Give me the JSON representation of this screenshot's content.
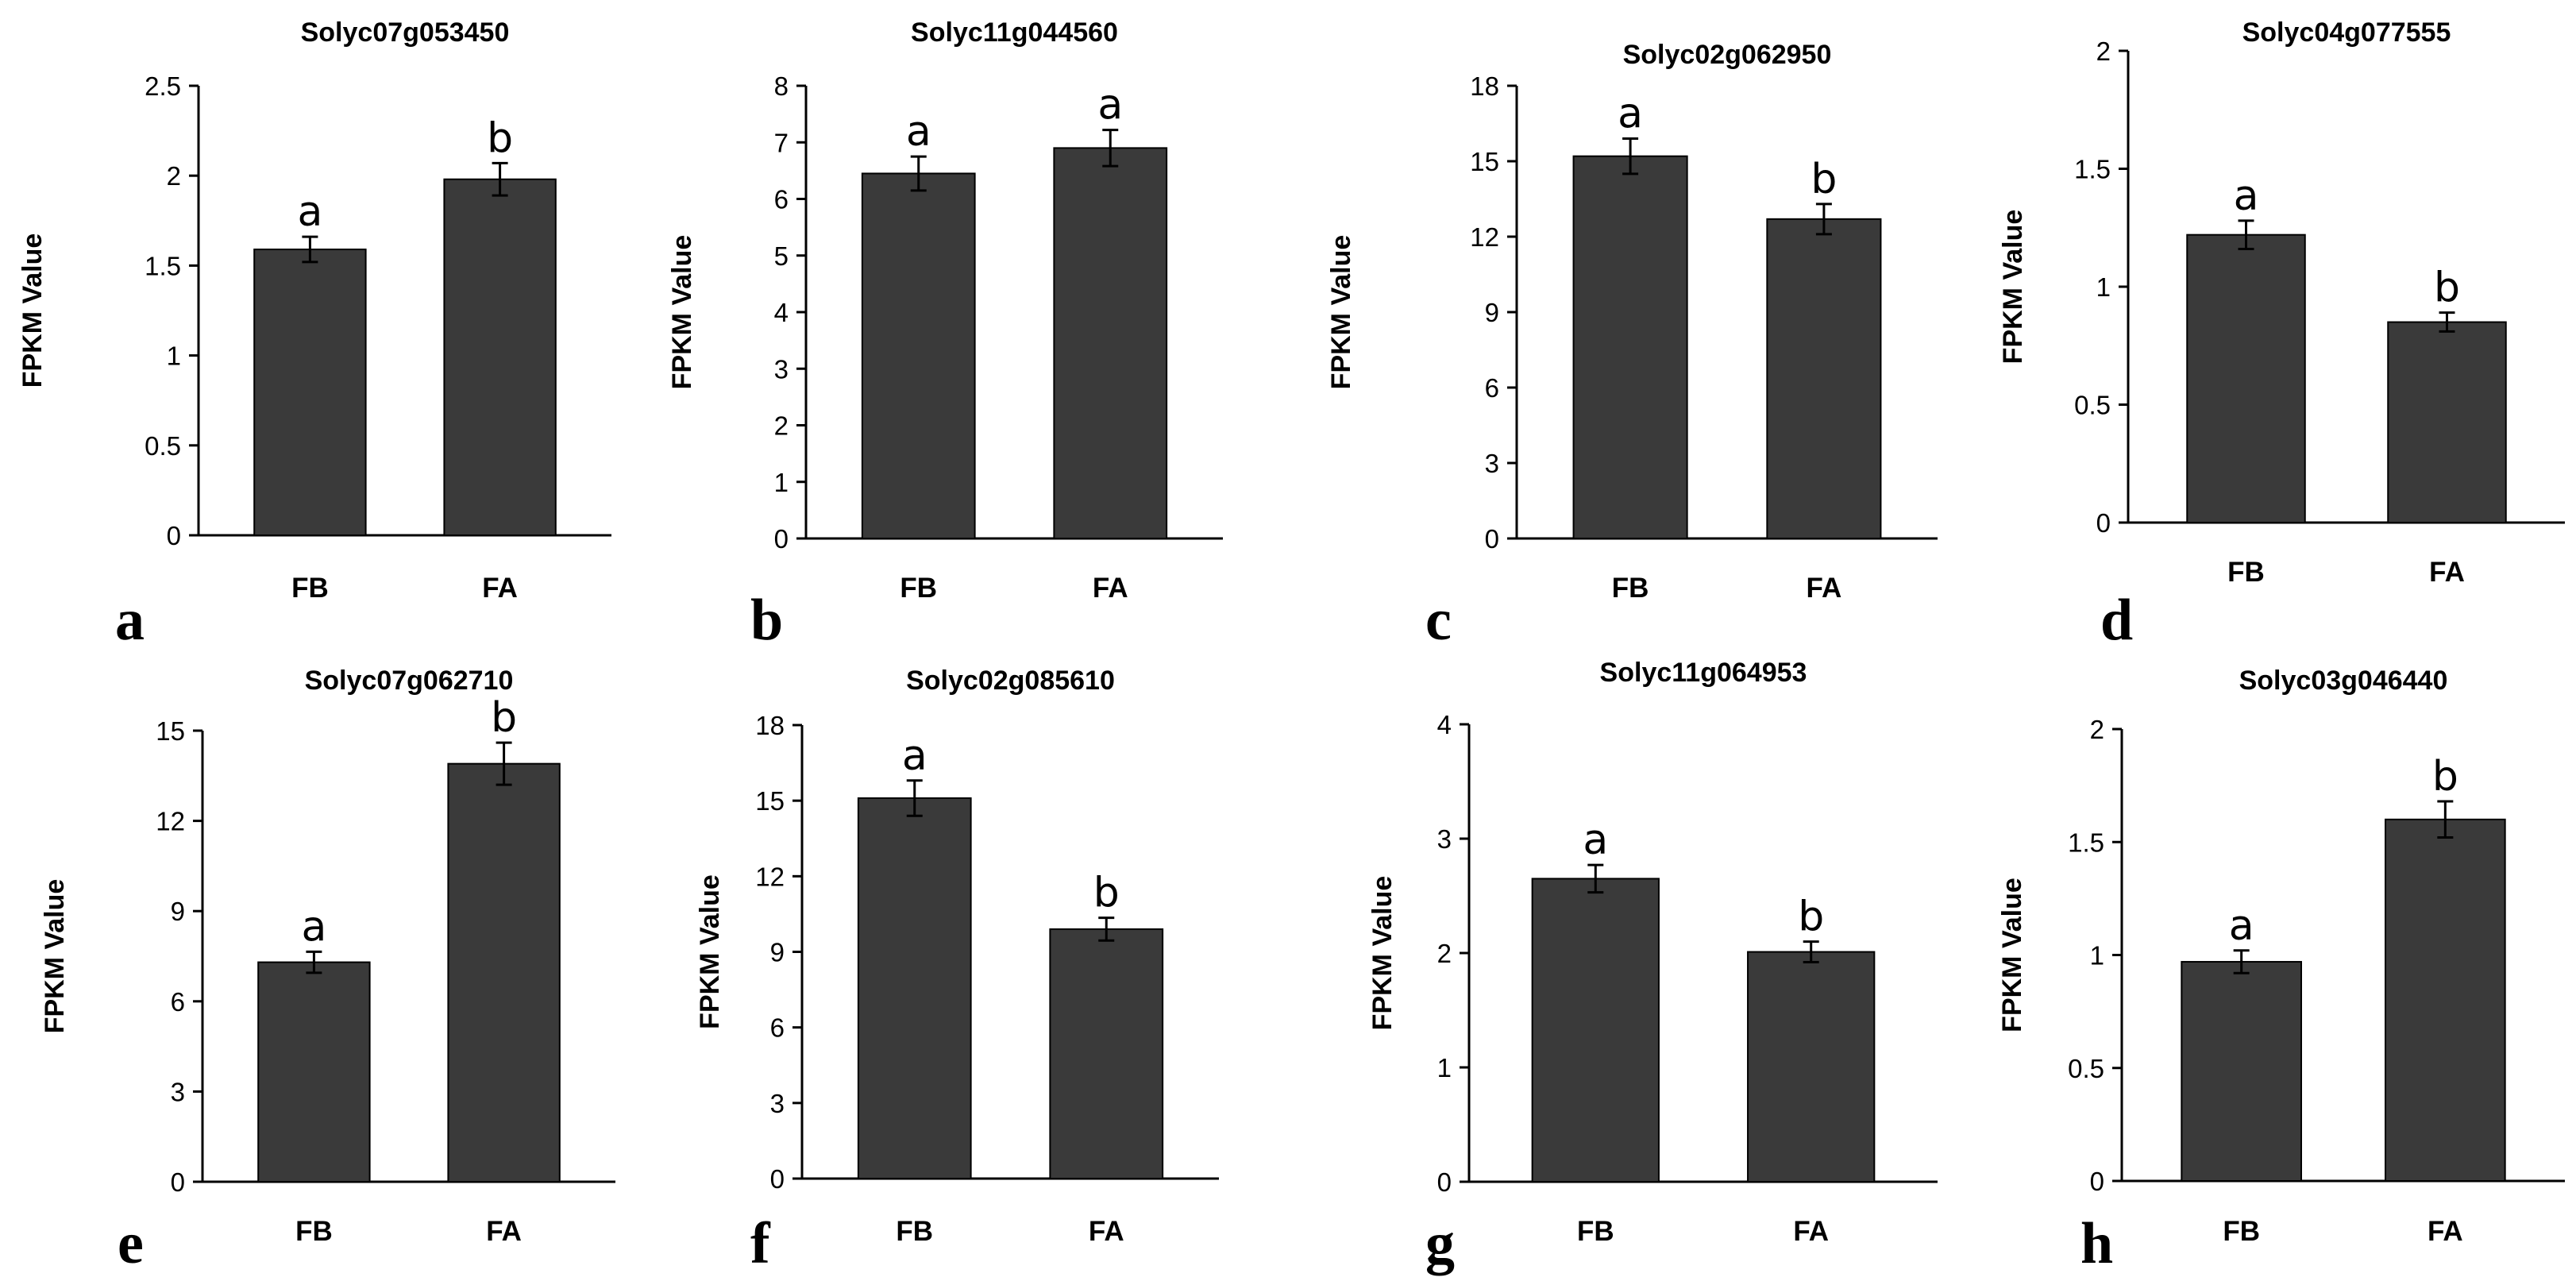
{
  "chart_data": [
    {
      "type": "bar",
      "panel": "a",
      "title": "Solyc07g053450",
      "ylabel": "FPKM  Value",
      "categories": [
        "FB",
        "FA"
      ],
      "values": [
        1.59,
        1.98
      ],
      "errors": [
        0.07,
        0.09
      ],
      "significance": [
        "a",
        "b"
      ],
      "ylim": [
        0,
        2.5
      ],
      "yticks": [
        "0",
        "0.5",
        "1",
        "1.5",
        "2",
        "2.5"
      ]
    },
    {
      "type": "bar",
      "panel": "b",
      "title": "Solyc11g044560",
      "ylabel": "FPKM  Value",
      "categories": [
        "FB",
        "FA"
      ],
      "values": [
        6.45,
        6.9
      ],
      "errors": [
        0.3,
        0.32
      ],
      "significance": [
        "a",
        "a"
      ],
      "ylim": [
        0,
        8
      ],
      "yticks": [
        "0",
        "1",
        "2",
        "3",
        "4",
        "5",
        "6",
        "7",
        "8"
      ]
    },
    {
      "type": "bar",
      "panel": "c",
      "title": "Solyc02g062950",
      "ylabel": "FPKM  Value",
      "categories": [
        "FB",
        "FA"
      ],
      "values": [
        15.2,
        12.7
      ],
      "errors": [
        0.7,
        0.6
      ],
      "significance": [
        "a",
        "b"
      ],
      "ylim": [
        0,
        18
      ],
      "yticks": [
        "0",
        "3",
        "6",
        "9",
        "12",
        "15",
        "18"
      ]
    },
    {
      "type": "bar",
      "panel": "d",
      "title": "Solyc04g077555",
      "ylabel": "FPKM  Value",
      "categories": [
        "FB",
        "FA"
      ],
      "values": [
        1.22,
        0.85
      ],
      "errors": [
        0.06,
        0.04
      ],
      "significance": [
        "a",
        "b"
      ],
      "ylim": [
        0,
        2
      ],
      "yticks": [
        "0",
        "0.5",
        "1",
        "1.5",
        "2"
      ]
    },
    {
      "type": "bar",
      "panel": "e",
      "title": "Solyc07g062710",
      "ylabel": "FPKM  Value",
      "categories": [
        "FB",
        "FA"
      ],
      "values": [
        7.3,
        13.9
      ],
      "errors": [
        0.35,
        0.7
      ],
      "significance": [
        "a",
        "b"
      ],
      "ylim": [
        0,
        15
      ],
      "yticks": [
        "0",
        "3",
        "6",
        "9",
        "12",
        "15"
      ]
    },
    {
      "type": "bar",
      "panel": "f",
      "title": "Solyc02g085610",
      "ylabel": "FPKM  Value",
      "categories": [
        "FB",
        "FA"
      ],
      "values": [
        15.1,
        9.9
      ],
      "errors": [
        0.7,
        0.45
      ],
      "significance": [
        "a",
        "b"
      ],
      "ylim": [
        0,
        18
      ],
      "yticks": [
        "0",
        "3",
        "6",
        "9",
        "12",
        "15",
        "18"
      ]
    },
    {
      "type": "bar",
      "panel": "g",
      "title": "Solyc11g064953",
      "ylabel": "FPKM  Value",
      "categories": [
        "FB",
        "FA"
      ],
      "values": [
        2.65,
        2.01
      ],
      "errors": [
        0.12,
        0.09
      ],
      "significance": [
        "a",
        "b"
      ],
      "ylim": [
        0,
        4
      ],
      "yticks": [
        "0",
        "1",
        "2",
        "3",
        "4"
      ]
    },
    {
      "type": "bar",
      "panel": "h",
      "title": "Solyc03g046440",
      "ylabel": "FPKM  Value",
      "categories": [
        "FB",
        "FA"
      ],
      "values": [
        0.97,
        1.6
      ],
      "errors": [
        0.05,
        0.08
      ],
      "significance": [
        "a",
        "b"
      ],
      "ylim": [
        0,
        2
      ],
      "yticks": [
        "0",
        "0.5",
        "1",
        "1.5",
        "2"
      ]
    }
  ]
}
